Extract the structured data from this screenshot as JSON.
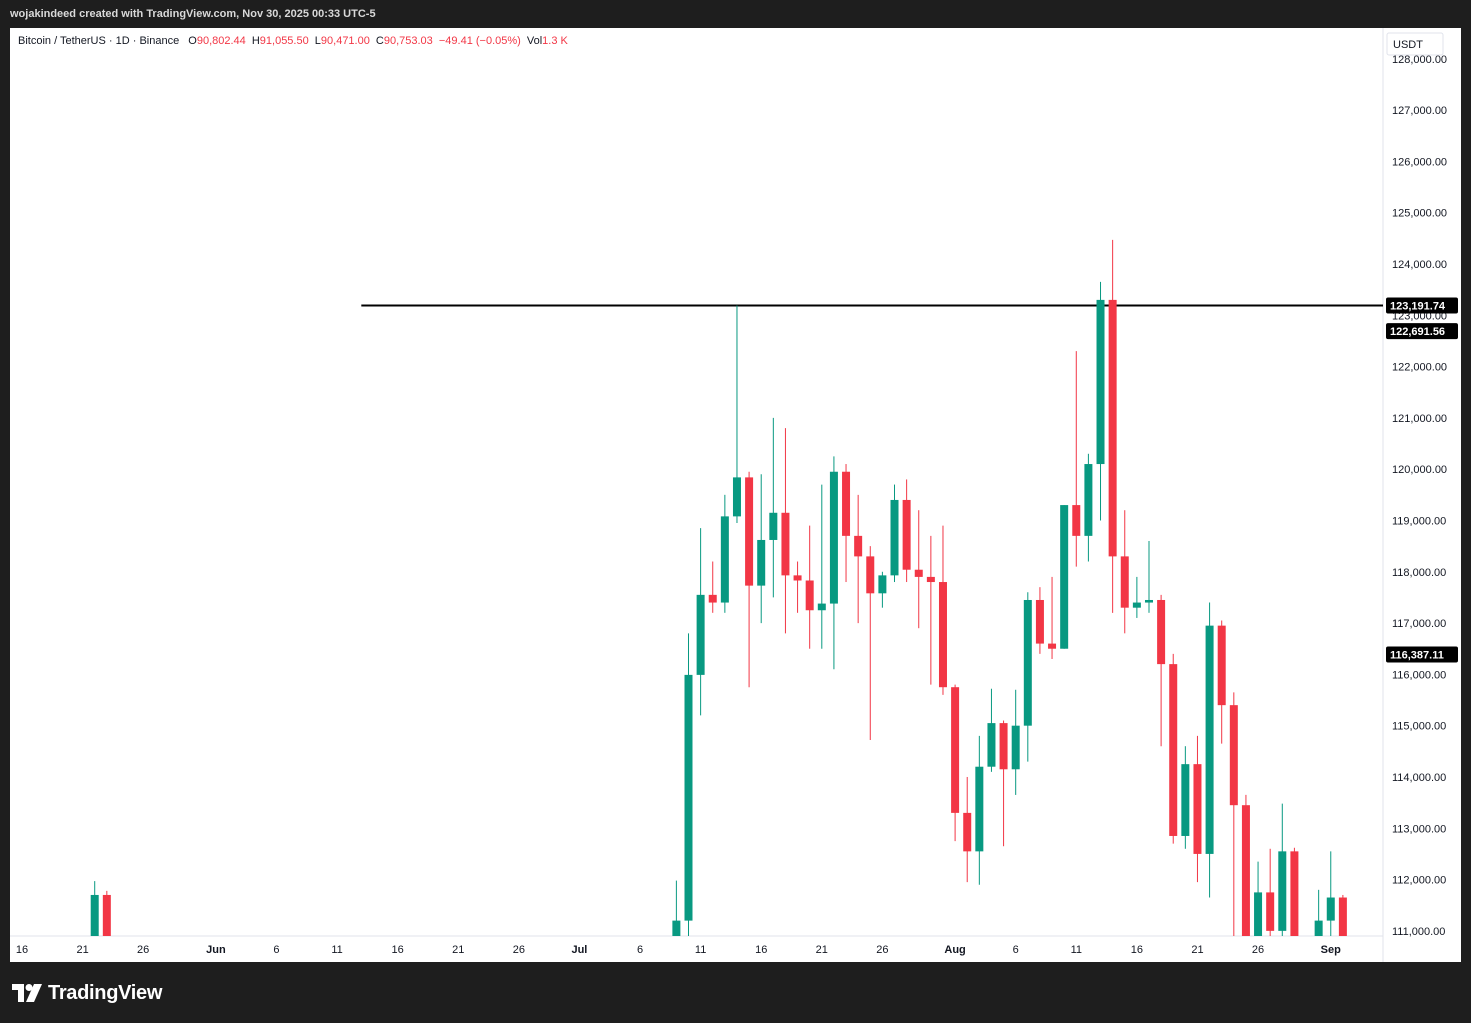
{
  "header": {
    "credit": "wojakindeed created with TradingView.com, Nov 30, 2025 00:33 UTC-5"
  },
  "legend": {
    "symbol": "Bitcoin / TetherUS · 1D · Binance",
    "o_label": "O",
    "o_value": "90,802.44",
    "h_label": "H",
    "h_value": "91,055.50",
    "l_label": "L",
    "l_value": "90,471.00",
    "c_label": "C",
    "c_value": "90,753.03",
    "change": "−49.41 (−0.05%)",
    "vol_label": "Vol",
    "vol_value": "1.3 K"
  },
  "footer": {
    "brand": "TradingView",
    "logo_icon": "tradingview-logo-icon"
  },
  "colors": {
    "up": "#089981",
    "down": "#f23645",
    "line": "#000000",
    "label_bg": "#000000",
    "background": "#ffffff",
    "frame": "#1e1e1e"
  },
  "chart_data": {
    "type": "candlestick",
    "symbol": "Bitcoin / TetherUS",
    "interval": "1D",
    "exchange": "Binance",
    "currency": "USDT",
    "ylim": [
      110900,
      128600
    ],
    "y_ticks": [
      111000,
      112000,
      113000,
      114000,
      115000,
      116000,
      117000,
      118000,
      119000,
      120000,
      121000,
      122000,
      123000,
      124000,
      125000,
      126000,
      127000,
      128000
    ],
    "x_tick_labels": [
      "16",
      "21",
      "26",
      "Jun",
      "6",
      "11",
      "16",
      "21",
      "26",
      "Jul",
      "6",
      "11",
      "16",
      "21",
      "26",
      "Aug",
      "6",
      "11",
      "16",
      "21",
      "26",
      "Sep"
    ],
    "x_tick_dates": [
      "2025-05-16",
      "2025-05-21",
      "2025-05-26",
      "2025-06-01",
      "2025-06-06",
      "2025-06-11",
      "2025-06-16",
      "2025-06-21",
      "2025-06-26",
      "2025-07-01",
      "2025-07-06",
      "2025-07-11",
      "2025-07-16",
      "2025-07-21",
      "2025-07-26",
      "2025-08-01",
      "2025-08-06",
      "2025-08-11",
      "2025-08-16",
      "2025-08-21",
      "2025-08-26",
      "2025-09-01"
    ],
    "x_range": [
      "2025-05-16",
      "2025-09-03"
    ],
    "horizontal_line": {
      "value": 123191.74,
      "start": "2025-06-13",
      "label": "123,191.74"
    },
    "price_labels": [
      {
        "value": 122691.56,
        "text": "122,691.56"
      },
      {
        "value": 116387.11,
        "text": "116,387.11"
      }
    ],
    "candles": [
      {
        "date": "2025-05-22",
        "open": 110900,
        "high": 111970,
        "low": 110900,
        "close": 111700
      },
      {
        "date": "2025-05-23",
        "open": 111700,
        "high": 111780,
        "low": 110900,
        "close": 110900
      },
      {
        "date": "2025-07-09",
        "open": 110900,
        "high": 111980,
        "low": 110900,
        "close": 111200
      },
      {
        "date": "2025-07-10",
        "open": 111200,
        "high": 116800,
        "low": 110900,
        "close": 115990
      },
      {
        "date": "2025-07-11",
        "open": 115990,
        "high": 118850,
        "low": 115200,
        "close": 117550
      },
      {
        "date": "2025-07-12",
        "open": 117550,
        "high": 118200,
        "low": 117200,
        "close": 117400
      },
      {
        "date": "2025-07-13",
        "open": 117400,
        "high": 119500,
        "low": 117200,
        "close": 119080
      },
      {
        "date": "2025-07-14",
        "open": 119080,
        "high": 123191.74,
        "low": 118950,
        "close": 119840
      },
      {
        "date": "2025-07-15",
        "open": 119840,
        "high": 119950,
        "low": 115750,
        "close": 117730
      },
      {
        "date": "2025-07-16",
        "open": 117730,
        "high": 119900,
        "low": 117000,
        "close": 118620
      },
      {
        "date": "2025-07-17",
        "open": 118620,
        "high": 121000,
        "low": 117500,
        "close": 119150
      },
      {
        "date": "2025-07-18",
        "open": 119150,
        "high": 120800,
        "low": 116800,
        "close": 117930
      },
      {
        "date": "2025-07-19",
        "open": 117930,
        "high": 118200,
        "low": 117200,
        "close": 117830
      },
      {
        "date": "2025-07-20",
        "open": 117830,
        "high": 118900,
        "low": 116500,
        "close": 117250
      },
      {
        "date": "2025-07-21",
        "open": 117250,
        "high": 119700,
        "low": 116500,
        "close": 117380
      },
      {
        "date": "2025-07-22",
        "open": 117380,
        "high": 120250,
        "low": 116100,
        "close": 119950
      },
      {
        "date": "2025-07-23",
        "open": 119950,
        "high": 120100,
        "low": 117800,
        "close": 118700
      },
      {
        "date": "2025-07-24",
        "open": 118700,
        "high": 119500,
        "low": 117000,
        "close": 118300
      },
      {
        "date": "2025-07-25",
        "open": 118300,
        "high": 118500,
        "low": 114720,
        "close": 117580
      },
      {
        "date": "2025-07-26",
        "open": 117580,
        "high": 118000,
        "low": 117300,
        "close": 117930
      },
      {
        "date": "2025-07-27",
        "open": 117930,
        "high": 119700,
        "low": 117800,
        "close": 119400
      },
      {
        "date": "2025-07-28",
        "open": 119400,
        "high": 119800,
        "low": 117800,
        "close": 118040
      },
      {
        "date": "2025-07-29",
        "open": 118040,
        "high": 119200,
        "low": 116900,
        "close": 117900
      },
      {
        "date": "2025-07-30",
        "open": 117900,
        "high": 118700,
        "low": 115800,
        "close": 117800
      },
      {
        "date": "2025-07-31",
        "open": 117800,
        "high": 118900,
        "low": 115600,
        "close": 115750
      },
      {
        "date": "2025-08-01",
        "open": 115750,
        "high": 115800,
        "low": 112750,
        "close": 113300
      },
      {
        "date": "2025-08-02",
        "open": 113300,
        "high": 114000,
        "low": 111950,
        "close": 112550
      },
      {
        "date": "2025-08-03",
        "open": 112550,
        "high": 114800,
        "low": 111900,
        "close": 114200
      },
      {
        "date": "2025-08-04",
        "open": 114200,
        "high": 115720,
        "low": 114100,
        "close": 115050
      },
      {
        "date": "2025-08-05",
        "open": 115050,
        "high": 115100,
        "low": 112650,
        "close": 114150
      },
      {
        "date": "2025-08-06",
        "open": 114150,
        "high": 115700,
        "low": 113650,
        "close": 115000
      },
      {
        "date": "2025-08-07",
        "open": 115000,
        "high": 117600,
        "low": 114300,
        "close": 117450
      },
      {
        "date": "2025-08-08",
        "open": 117450,
        "high": 117700,
        "low": 116400,
        "close": 116600
      },
      {
        "date": "2025-08-09",
        "open": 116600,
        "high": 117900,
        "low": 116300,
        "close": 116500
      },
      {
        "date": "2025-08-10",
        "open": 116500,
        "high": 119300,
        "low": 116500,
        "close": 119300
      },
      {
        "date": "2025-08-11",
        "open": 119300,
        "high": 122300,
        "low": 118100,
        "close": 118700
      },
      {
        "date": "2025-08-12",
        "open": 118700,
        "high": 120300,
        "low": 118200,
        "close": 120100
      },
      {
        "date": "2025-08-13",
        "open": 120100,
        "high": 123650,
        "low": 119000,
        "close": 123300
      },
      {
        "date": "2025-08-14",
        "open": 123300,
        "high": 124470,
        "low": 117200,
        "close": 118300
      },
      {
        "date": "2025-08-15",
        "open": 118300,
        "high": 119200,
        "low": 116800,
        "close": 117300
      },
      {
        "date": "2025-08-16",
        "open": 117300,
        "high": 117900,
        "low": 117100,
        "close": 117400
      },
      {
        "date": "2025-08-17",
        "open": 117400,
        "high": 118600,
        "low": 117200,
        "close": 117450
      },
      {
        "date": "2025-08-18",
        "open": 117450,
        "high": 117550,
        "low": 114600,
        "close": 116200
      },
      {
        "date": "2025-08-19",
        "open": 116200,
        "high": 116400,
        "low": 112700,
        "close": 112850
      },
      {
        "date": "2025-08-20",
        "open": 112850,
        "high": 114600,
        "low": 112600,
        "close": 114250
      },
      {
        "date": "2025-08-21",
        "open": 114250,
        "high": 114800,
        "low": 111950,
        "close": 112500
      },
      {
        "date": "2025-08-22",
        "open": 112500,
        "high": 117400,
        "low": 111650,
        "close": 116950
      },
      {
        "date": "2025-08-23",
        "open": 116950,
        "high": 117050,
        "low": 114650,
        "close": 115400
      },
      {
        "date": "2025-08-24",
        "open": 115400,
        "high": 115650,
        "low": 110900,
        "close": 113450
      },
      {
        "date": "2025-08-25",
        "open": 113450,
        "high": 113650,
        "low": 110900,
        "close": 110900
      },
      {
        "date": "2025-08-26",
        "open": 110900,
        "high": 112350,
        "low": 110900,
        "close": 111750
      },
      {
        "date": "2025-08-27",
        "open": 111750,
        "high": 112600,
        "low": 110900,
        "close": 111000
      },
      {
        "date": "2025-08-28",
        "open": 111000,
        "high": 113480,
        "low": 110900,
        "close": 112550
      },
      {
        "date": "2025-08-29",
        "open": 112550,
        "high": 112620,
        "low": 110900,
        "close": 110900
      },
      {
        "date": "2025-08-31",
        "open": 110900,
        "high": 111800,
        "low": 110900,
        "close": 111200
      },
      {
        "date": "2025-09-01",
        "open": 111200,
        "high": 112550,
        "low": 110900,
        "close": 111650
      },
      {
        "date": "2025-09-02",
        "open": 111650,
        "high": 111700,
        "low": 110900,
        "close": 110900
      }
    ]
  }
}
